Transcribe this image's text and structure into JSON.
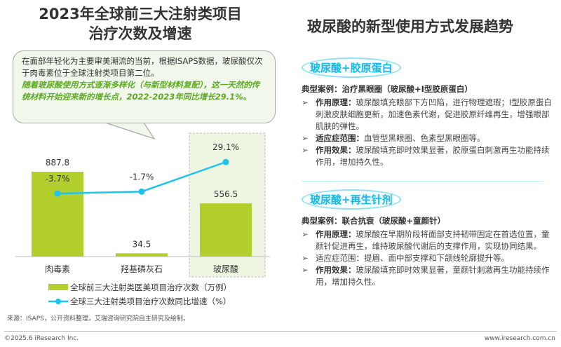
{
  "left_title": [
    "2023年全球前三大注射类项目",
    "治疗次数及增速"
  ],
  "right_title": "玻尿酸的新型使用方式发展趋势",
  "bubble": {
    "text": "在面部年轻化为主要审美潮流的当前，根据ISAPS数据，玻尿酸仅次于肉毒素位于全球注射类项目第二位。",
    "highlight": "随着玻尿酸使用方式逐渐多样化（与新型材料复配），这一天然的传统材料开始迎来新的增长点，2022-2023年同比增长29.1%。"
  },
  "chart_data": {
    "type": "bar+line",
    "categories": [
      "肉毒素",
      "羟基磷灰石",
      "玻尿酸"
    ],
    "series": [
      {
        "name": "全球前三大注射类医美项目治疗次数（万例）",
        "type": "bar",
        "values": [
          887.8,
          34.5,
          556.5
        ],
        "labels": [
          "887.8",
          "34.5",
          "556.5"
        ],
        "color": "#b3cf2e"
      },
      {
        "name": "全球三大注射类项目治疗次数同比增速（%）",
        "type": "line",
        "values": [
          -3.7,
          -1.7,
          29.1
        ],
        "labels": [
          "-3.7%",
          "-1.7%",
          "29.1%"
        ],
        "color": "#1fc3ef"
      }
    ],
    "highlight_category": "玻尿酸",
    "legend": "bottom",
    "grid": false
  },
  "source": "来源：ISAPS，公开资料整理，艾瑞咨询研究院自主研究及绘制。",
  "copyright": "©2025.6 iResearch Inc.",
  "website": "www.iresearch.com.cn",
  "sections": [
    {
      "tag": "玻尿酸+胶原蛋白",
      "case": "典型案例：治疗黑眼圈（玻尿酸+I型胶原蛋白）",
      "items": [
        {
          "k": "作用原理：",
          "v": "玻尿酸填充眼部下方凹陷，进行物理遮瑕；I型胶原蛋白刺激皮肤细胞更新，加速色素代谢，促进胶原纤维再生，增强眼部肌肤的弹性。"
        },
        {
          "k": "适应症范围：",
          "v": "血管型黑眼圈、色素型黑眼圈等。"
        },
        {
          "k": "作用效果：",
          "v": "玻尿酸填充即时效果显著，胶原蛋白刺激再生功能持续作用，增加持久性。"
        }
      ]
    },
    {
      "tag": "玻尿酸+再生针剂",
      "case": "典型案例：联合抗衰（玻尿酸+童颜针）",
      "items": [
        {
          "k": "作用原理：",
          "v": "玻尿酸在早期阶段将面部支持韧带固定在首选位置，童颜针促进再生，维持玻尿酸代谢后的支撑作用，实现协同结果。"
        },
        {
          "k": "",
          "v": "适应症范围：提眉、面中部支撑和下颌线轮廓提升等。"
        },
        {
          "k": "作用效果：",
          "v": "玻尿酸填充即时效果显著，童颜针刺激再生功能持续作用，增加持久性。"
        }
      ]
    }
  ]
}
